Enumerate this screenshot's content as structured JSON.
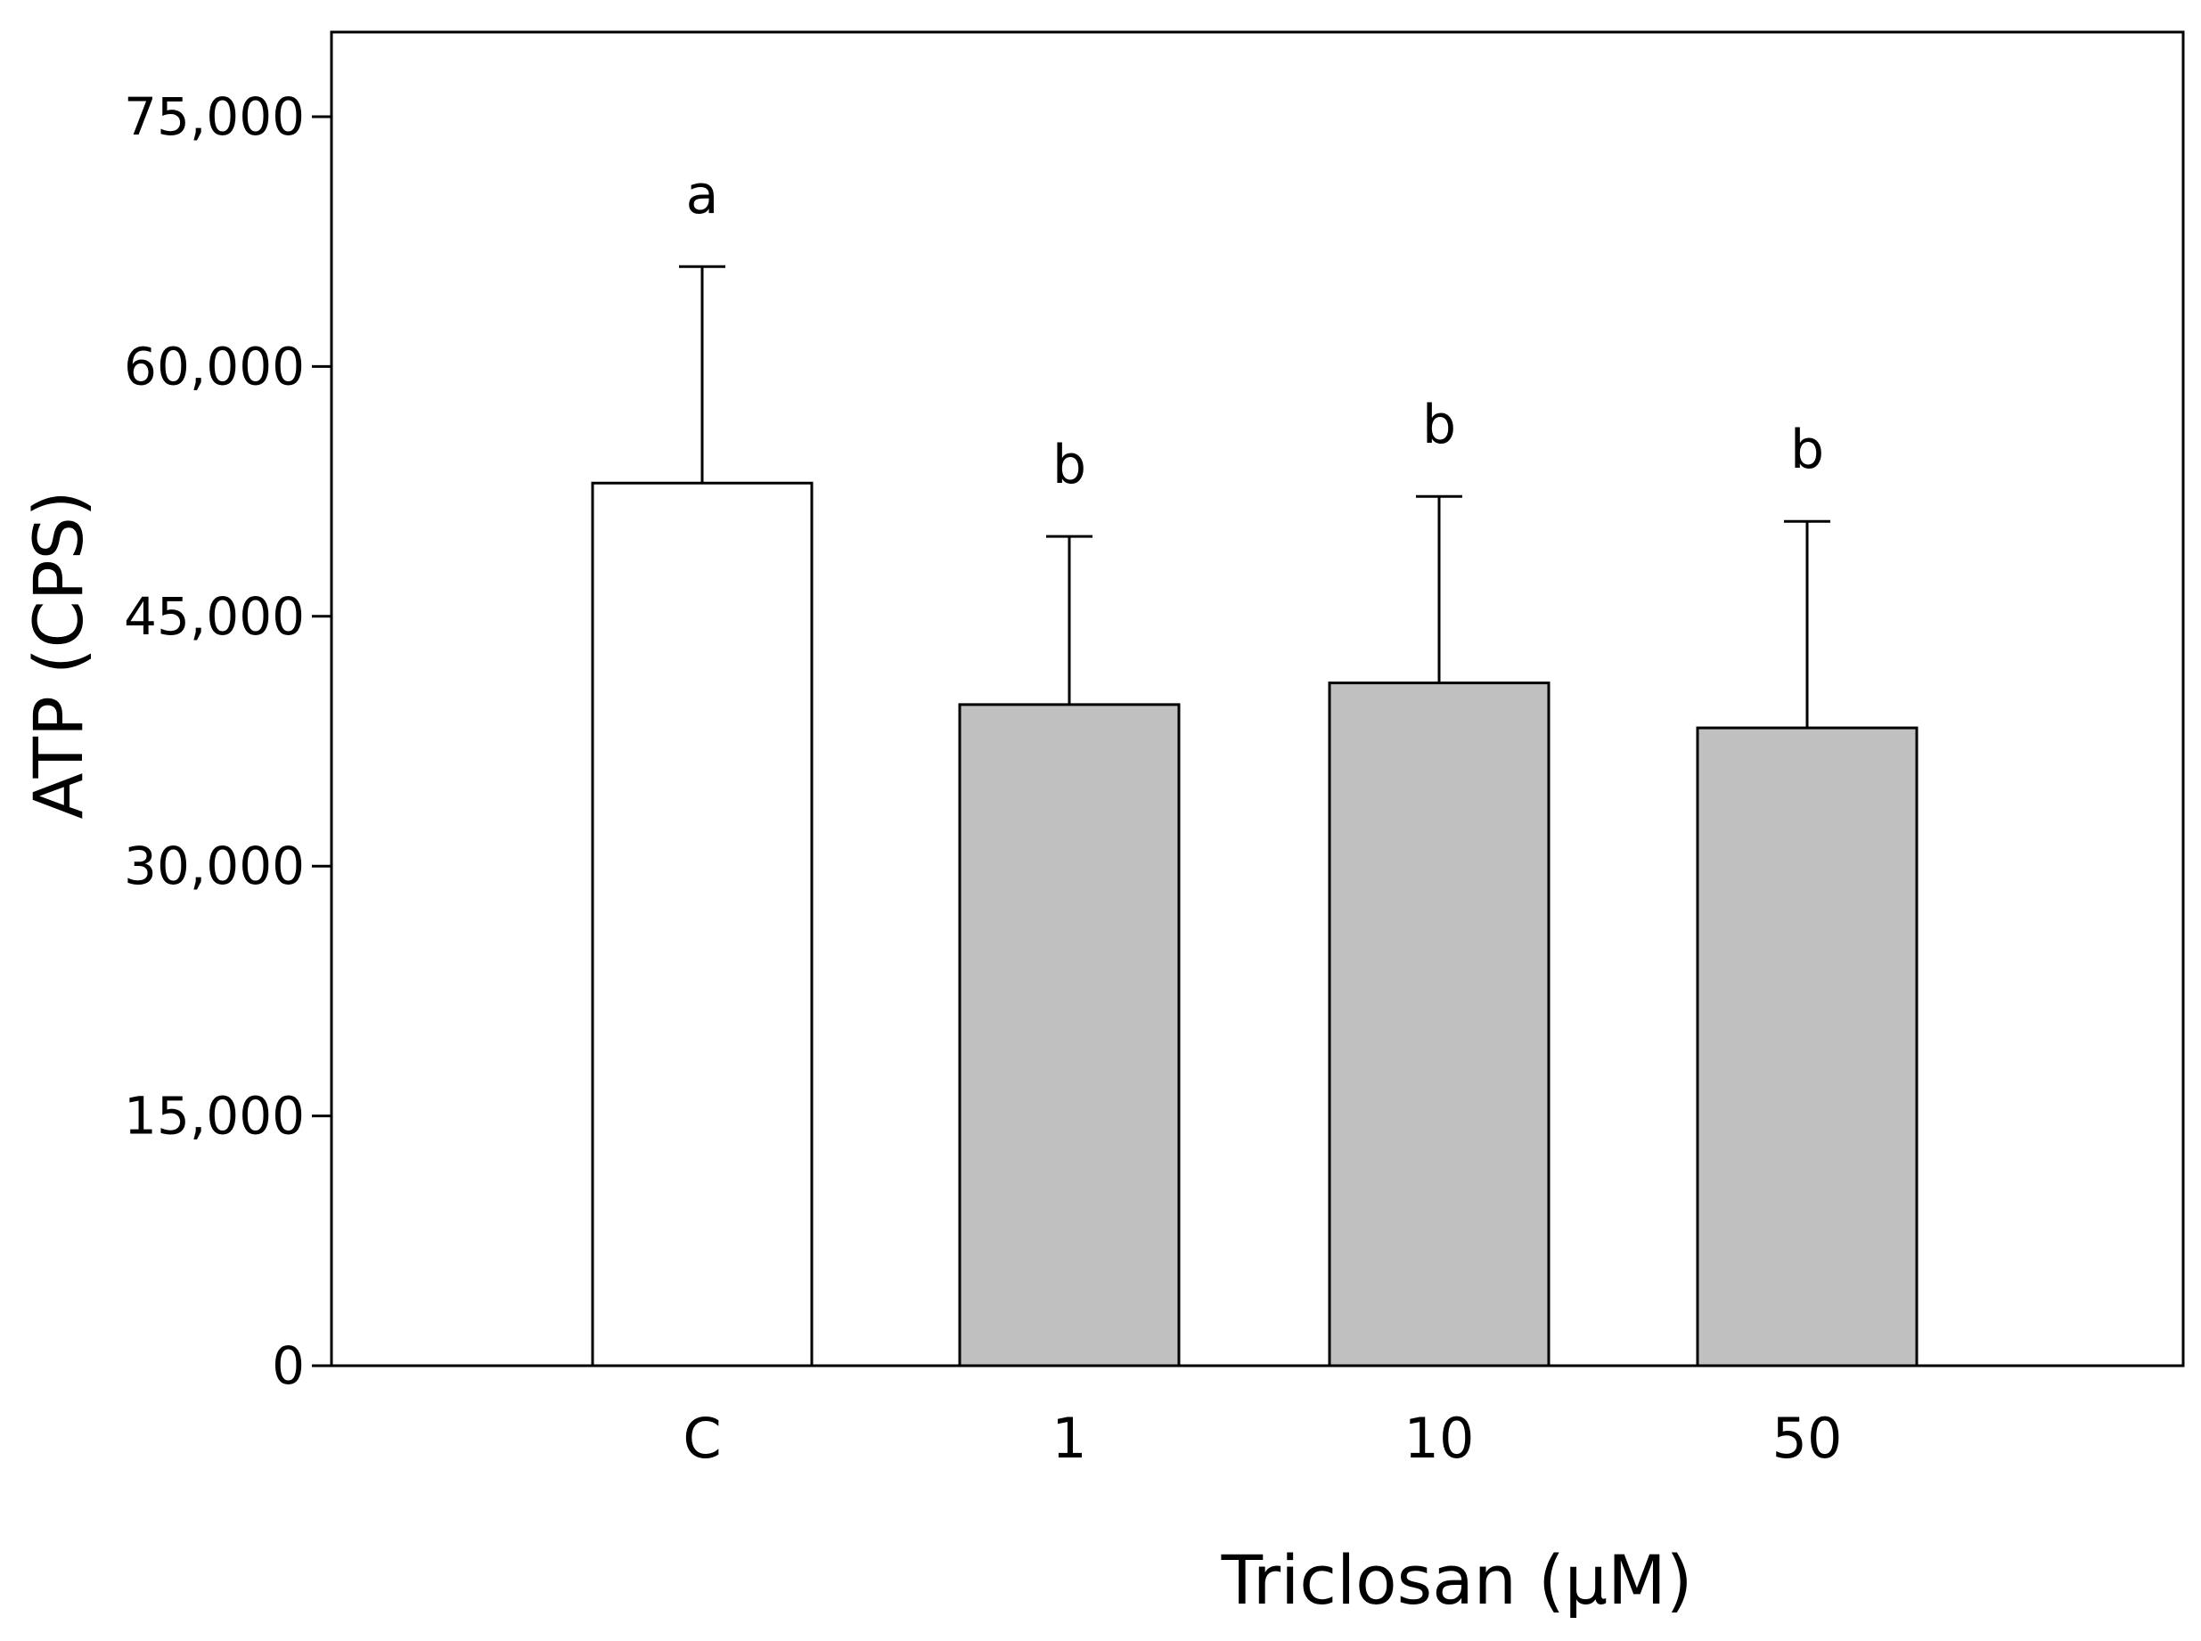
{
  "chart_data": {
    "type": "bar",
    "title": "",
    "xlabel": "Triclosan (μM)",
    "ylabel": "ATP (CPS)",
    "categories": [
      "C",
      "1",
      "10",
      "50"
    ],
    "values": [
      53000,
      39700,
      41000,
      38300
    ],
    "errors": [
      13000,
      10100,
      11200,
      12400
    ],
    "significance": [
      "a",
      "b",
      "b",
      "b"
    ],
    "bar_colors": [
      "#ffffff",
      "#c0c0c0",
      "#c0c0c0",
      "#c0c0c0"
    ],
    "ylim": [
      0,
      80000
    ],
    "yticks": [
      0,
      15000,
      30000,
      45000,
      60000,
      75000
    ],
    "ytick_labels": [
      "0",
      "15,000",
      "30,000",
      "45,000",
      "60,000",
      "75,000"
    ],
    "grid": false,
    "legend": "none"
  }
}
